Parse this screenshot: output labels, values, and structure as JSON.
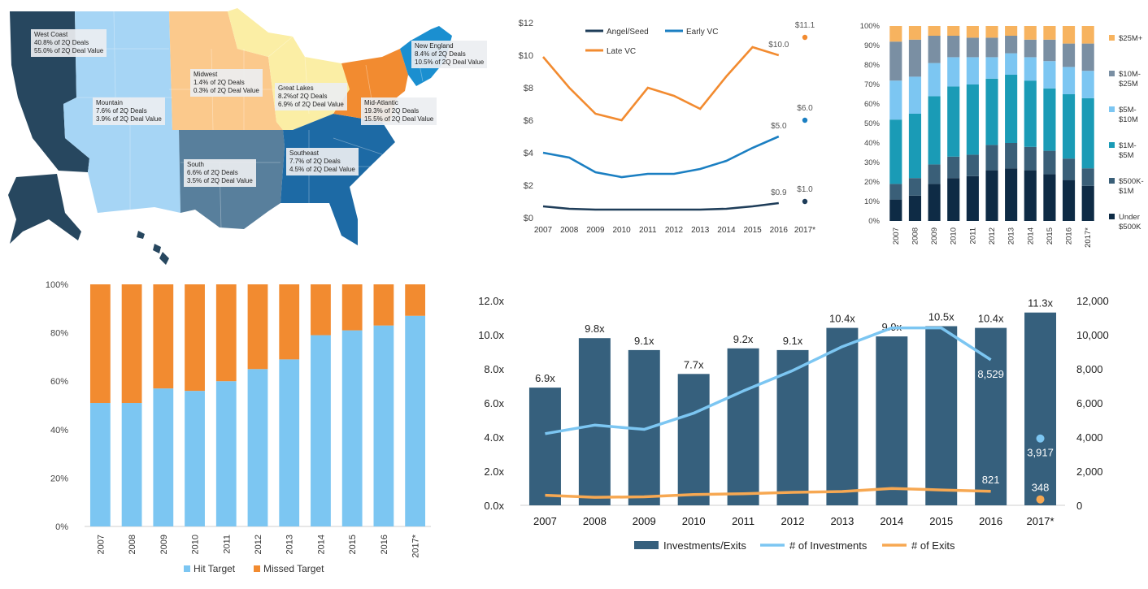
{
  "colors": {
    "navy": "#1e3d59",
    "dark_slate": "#36607d",
    "mid_teal": "#1a9bb6",
    "blue": "#1b7fc2",
    "light_blue": "#7cc6f2",
    "orange": "#f28b30",
    "light_orange": "#f7a852",
    "grey_blue": "#6e8ca7",
    "yellow": "#fbeea5",
    "tan": "#fbc98c"
  },
  "map": {
    "regions": [
      {
        "name": "West Coast",
        "deals": "40.8% of 2Q Deals",
        "value": "55.0% of 2Q Deal Value",
        "color": "#27475f"
      },
      {
        "name": "Mountain",
        "deals": "7.6% of 2Q Deals",
        "value": "3.9% of 2Q Deal Value",
        "color": "#a6d5f5"
      },
      {
        "name": "Midwest",
        "deals": "1.4% of 2Q Deals",
        "value": "0.3% of 2Q Deal Value",
        "color": "#fbc98c"
      },
      {
        "name": "Great Lakes",
        "deals": "8.2%of 2Q Deals",
        "value": "6.9% of 2Q Deal Value",
        "color": "#fbeea5"
      },
      {
        "name": "New England",
        "deals": "8.4% of 2Q Deals",
        "value": "10.5% of 2Q Deal Value",
        "color": "#1b8fd0"
      },
      {
        "name": "Mid-Atlantic",
        "deals": "19.3% of 2Q Deals",
        "value": "15.5% of 2Q Deal Value",
        "color": "#f28b30"
      },
      {
        "name": "South",
        "deals": "6.6% of 2Q Deals",
        "value": "3.5% of 2Q Deal Value",
        "color": "#587f9c"
      },
      {
        "name": "Southeast",
        "deals": "7.7% of 2Q Deals",
        "value": "4.5% of 2Q Deal Value",
        "color": "#1d6aa5"
      }
    ]
  },
  "chart_data": [
    {
      "type": "line",
      "categories": [
        "2007",
        "2008",
        "2009",
        "2010",
        "2011",
        "2012",
        "2013",
        "2014",
        "2015",
        "2016",
        "2017*"
      ],
      "y_ticks": [
        "$0",
        "$2",
        "$4",
        "$6",
        "$8",
        "$10",
        "$12"
      ],
      "ylim": [
        0,
        12
      ],
      "grid": false,
      "legend": "top-left",
      "series": [
        {
          "name": "Angel/Seed",
          "color": "#1e3d59",
          "values": [
            0.7,
            0.55,
            0.5,
            0.5,
            0.5,
            0.5,
            0.5,
            0.55,
            0.7,
            0.9,
            1.0
          ],
          "end_label": "$0.9",
          "point_2017_label": "$1.0"
        },
        {
          "name": "Early VC",
          "color": "#1b7fc2",
          "values": [
            4.0,
            3.7,
            2.8,
            2.5,
            2.7,
            2.7,
            3.0,
            3.5,
            4.3,
            5.0,
            6.0
          ],
          "end_label": "$5.0",
          "point_2017_label": "$6.0"
        },
        {
          "name": "Late VC",
          "color": "#f28b30",
          "values": [
            9.9,
            8.0,
            6.4,
            6.0,
            8.0,
            7.5,
            6.7,
            8.7,
            10.5,
            10.0,
            11.1
          ],
          "end_label": "$10.0",
          "point_2017_label": "$11.1"
        }
      ]
    },
    {
      "type": "bar",
      "stacked": true,
      "categories": [
        "2007",
        "2008",
        "2009",
        "2010",
        "2011",
        "2012",
        "2013",
        "2014",
        "2015",
        "2016",
        "2017*"
      ],
      "y_ticks": [
        "0%",
        "10%",
        "20%",
        "30%",
        "40%",
        "50%",
        "60%",
        "70%",
        "80%",
        "90%",
        "100%"
      ],
      "ylim": [
        0,
        100
      ],
      "legend": "right",
      "series": [
        {
          "name": "Under $500K",
          "color": "#0e2b45",
          "values": [
            11,
            13,
            19,
            22,
            23,
            26,
            27,
            26,
            24,
            21,
            18
          ]
        },
        {
          "name": "$500K-$1M",
          "color": "#3a5f78",
          "values": [
            8,
            9,
            10,
            11,
            11,
            13,
            13,
            12,
            12,
            11,
            9
          ]
        },
        {
          "name": "$1M-$5M",
          "color": "#1a9bb6",
          "values": [
            33,
            33,
            35,
            36,
            36,
            34,
            35,
            34,
            32,
            33,
            36
          ]
        },
        {
          "name": "$5M-$10M",
          "color": "#7cc6f2",
          "values": [
            20,
            19,
            17,
            15,
            14,
            11,
            11,
            12,
            14,
            14,
            14
          ]
        },
        {
          "name": "$10M-$25M",
          "color": "#7a8fa3",
          "values": [
            20,
            19,
            14,
            11,
            10,
            10,
            9,
            9,
            11,
            12,
            14
          ]
        },
        {
          "name": "$25M+",
          "color": "#f7b35f",
          "values": [
            8,
            7,
            5,
            5,
            6,
            6,
            5,
            7,
            7,
            9,
            9
          ]
        }
      ],
      "legend_lines": [
        [
          "$25M+"
        ],
        [
          "$10M-",
          "$25M"
        ],
        [
          "$5M-",
          "$10M"
        ],
        [
          "$1M-",
          "$5M"
        ],
        [
          "$500K-",
          "$1M"
        ],
        [
          "Under",
          "$500K"
        ]
      ]
    },
    {
      "type": "bar",
      "stacked": true,
      "categories": [
        "2007",
        "2008",
        "2009",
        "2010",
        "2011",
        "2012",
        "2013",
        "2014",
        "2015",
        "2016",
        "2017*"
      ],
      "y_ticks": [
        "0%",
        "20%",
        "40%",
        "60%",
        "80%",
        "100%"
      ],
      "ylim": [
        0,
        100
      ],
      "legend": "bottom",
      "series": [
        {
          "name": "Hit Target",
          "color": "#7cc6f2",
          "values": [
            51,
            51,
            57,
            56,
            60,
            65,
            69,
            79,
            81,
            83,
            87
          ]
        },
        {
          "name": "Missed Target",
          "color": "#f28b30",
          "values": [
            49,
            49,
            43,
            44,
            40,
            35,
            31,
            21,
            19,
            17,
            13
          ]
        }
      ]
    },
    {
      "type": "bar",
      "categories": [
        "2007",
        "2008",
        "2009",
        "2010",
        "2011",
        "2012",
        "2013",
        "2014",
        "2015",
        "2016",
        "2017*"
      ],
      "y_left_ticks": [
        "0.0x",
        "2.0x",
        "4.0x",
        "6.0x",
        "8.0x",
        "10.0x",
        "12.0x"
      ],
      "y_right_ticks": [
        "0",
        "2,000",
        "4,000",
        "6,000",
        "8,000",
        "10,000",
        "12,000"
      ],
      "ylim_left": [
        0,
        12
      ],
      "ylim_right": [
        0,
        12000
      ],
      "legend": "bottom",
      "series": [
        {
          "name": "Investments/Exits",
          "color": "#36607d",
          "axis": "left",
          "values": [
            6.9,
            9.8,
            9.1,
            7.7,
            9.2,
            9.1,
            10.4,
            9.9,
            10.5,
            10.4,
            11.3
          ],
          "labels": [
            "6.9x",
            "9.8x",
            "9.1x",
            "7.7x",
            "9.2x",
            "9.1x",
            "10.4x",
            "9.9x",
            "10.5x",
            "10.4x",
            "11.3x"
          ]
        },
        {
          "name": "# of Investments",
          "color": "#7cc6f2",
          "axis": "right",
          "values": [
            4200,
            4700,
            4450,
            5400,
            6700,
            7900,
            9300,
            10400,
            10400,
            8529,
            3917
          ],
          "labels": {
            "2016": "8,529",
            "2017*": "3,917"
          }
        },
        {
          "name": "# of Exits",
          "color": "#f7a852",
          "axis": "right",
          "values": [
            590,
            470,
            500,
            630,
            680,
            760,
            810,
            990,
            900,
            821,
            348
          ],
          "labels": {
            "2016": "821",
            "2017*": "348"
          }
        }
      ]
    }
  ]
}
